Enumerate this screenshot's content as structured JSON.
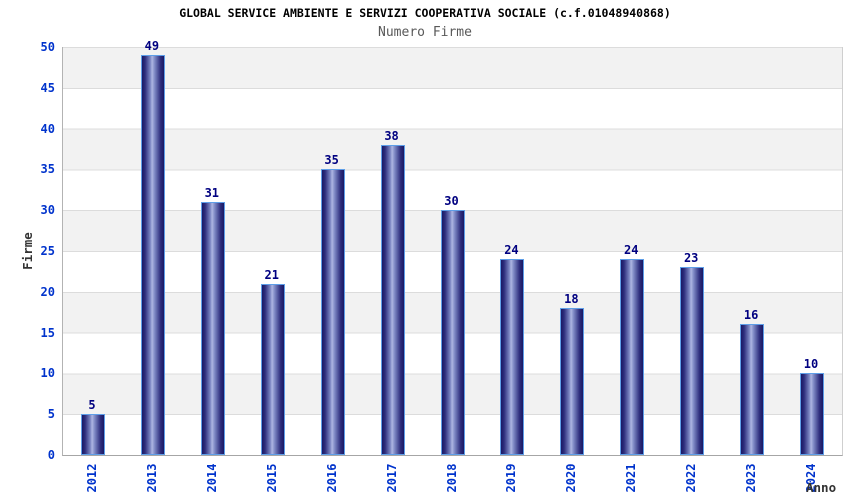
{
  "chart_data": {
    "type": "bar",
    "title": "GLOBAL SERVICE AMBIENTE E SERVIZI COOPERATIVA SOCIALE (c.f.01048940868)",
    "subtitle": "Numero Firme",
    "xlabel": "Anno",
    "ylabel": "Firme",
    "categories": [
      "2012",
      "2013",
      "2014",
      "2015",
      "2016",
      "2017",
      "2018",
      "2019",
      "2020",
      "2021",
      "2022",
      "2023",
      "2024"
    ],
    "values": [
      5,
      49,
      31,
      21,
      35,
      38,
      30,
      24,
      18,
      24,
      23,
      16,
      10
    ],
    "ylim": [
      0,
      50
    ],
    "ytick_step": 5,
    "grid": "horizontal-bands-alternating",
    "legend": "none",
    "colors": {
      "title": "#000000",
      "subtitle": "#595959",
      "axis_title": "#333333",
      "tick_label": "#0033cc",
      "value_label": "#000080",
      "bar_border": "#5e9ee8",
      "bar_dark": "#191965",
      "bar_mid": "#2e2e7d",
      "bar_mid_light": "#7d88c4",
      "bar_light": "#aeb6e2",
      "band_gray": "#f2f2f2",
      "band_white": "#ffffff",
      "gridline": "#dcdcdc"
    }
  }
}
